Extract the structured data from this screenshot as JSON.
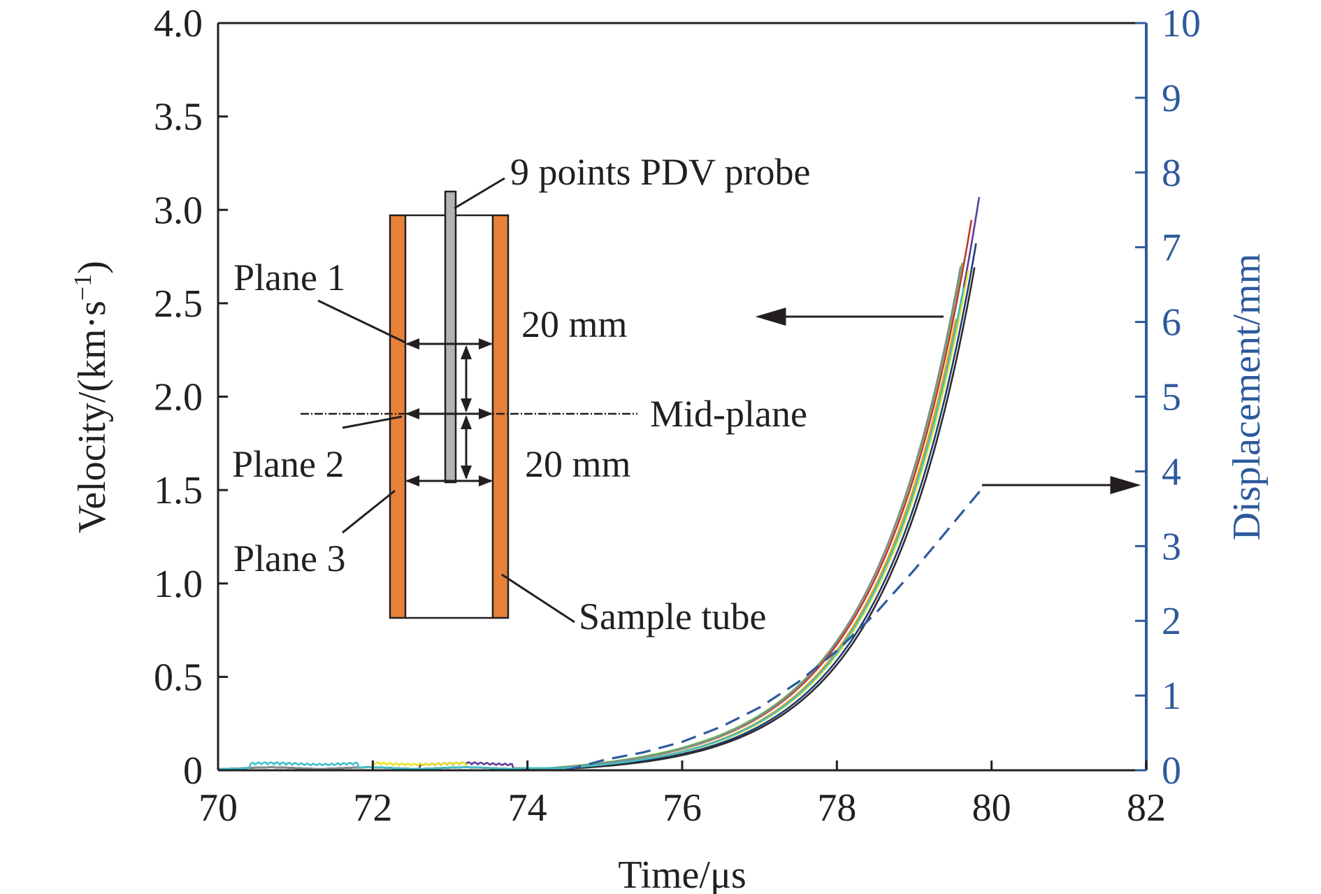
{
  "chart_data": {
    "type": "line",
    "xlabel": "Time/μs",
    "ylabel_left": {
      "main": "Velocity/(km·s",
      "sup": "−1",
      "close": ")"
    },
    "ylabel_right": "Displacement/mm",
    "xlim": [
      70,
      82
    ],
    "ylim_left": [
      0,
      4.0
    ],
    "ylim_right": [
      0,
      10
    ],
    "x_ticks": [
      "70",
      "72",
      "74",
      "76",
      "78",
      "80",
      "82"
    ],
    "y_left_ticks": [
      "0",
      "0.5",
      "1.0",
      "1.5",
      "2.0",
      "2.5",
      "3.0",
      "3.5",
      "4.0"
    ],
    "y_right_ticks": [
      "0",
      "1",
      "2",
      "3",
      "4",
      "5",
      "6",
      "7",
      "8",
      "9",
      "10"
    ],
    "grid": false,
    "velocity_model": {
      "t0": 73.9,
      "t_ref": 79.6,
      "v_ref": 2.5,
      "tau": 1.18
    },
    "velocity_series": [
      {
        "t_end": 79.85,
        "dt": 0.0,
        "dv": 0.0,
        "noise_t": [
          72.6,
          73.8
        ],
        "color": "#5b3f97"
      },
      {
        "t_end": 79.75,
        "dt": -0.04,
        "dv": 0.03,
        "noise_t": [],
        "color": "#c0392b"
      },
      {
        "t_end": 79.62,
        "dt": -0.06,
        "dv": 0.04,
        "noise_t": [],
        "color": "#6abf45"
      },
      {
        "t_end": 79.7,
        "dt": 0.02,
        "dv": 0.0,
        "noise_t": [
          72.0,
          73.2
        ],
        "color": "#e6e62a"
      },
      {
        "t_end": 79.55,
        "dt": -0.02,
        "dv": 0.0,
        "noise_t": [],
        "color": "#f39c12"
      },
      {
        "t_end": 79.8,
        "dt": 0.05,
        "dv": -0.02,
        "noise_t": [],
        "color": "#1f3b75"
      },
      {
        "t_end": 79.78,
        "dt": 0.08,
        "dv": -0.03,
        "noise_t": [],
        "color": "#2b2b2b"
      },
      {
        "t_end": 79.6,
        "dt": -0.08,
        "dv": 0.02,
        "noise_t": [],
        "color": "#7f8c8d"
      },
      {
        "t_end": 79.65,
        "dt": 0.0,
        "dv": 0.0,
        "noise_t": [
          70.4,
          71.8
        ],
        "color": "#3fbfc9"
      }
    ],
    "displacement_series": {
      "style": "dashed",
      "color": "#2e5a9c",
      "points": [
        [
          74.5,
          0.0
        ],
        [
          75.0,
          0.14
        ],
        [
          75.5,
          0.24
        ],
        [
          76.0,
          0.38
        ],
        [
          76.5,
          0.58
        ],
        [
          77.0,
          0.84
        ],
        [
          77.5,
          1.18
        ],
        [
          78.0,
          1.6
        ],
        [
          78.5,
          2.1
        ],
        [
          79.0,
          2.68
        ],
        [
          79.5,
          3.3
        ],
        [
          79.9,
          3.8
        ]
      ]
    }
  },
  "annotations": {
    "probe": "9 points PDV probe",
    "plane1": "Plane 1",
    "plane2": "Plane 2",
    "plane3": "Plane 3",
    "dim_top": "20 mm",
    "dim_bottom": "20 mm",
    "mid_plane": "Mid-plane",
    "sample_tube": "Sample tube"
  },
  "colors": {
    "axis": "#231f20",
    "right_axis": "#2e5a9c",
    "tube": "#e8823a",
    "probe": "#b3b3b3"
  }
}
